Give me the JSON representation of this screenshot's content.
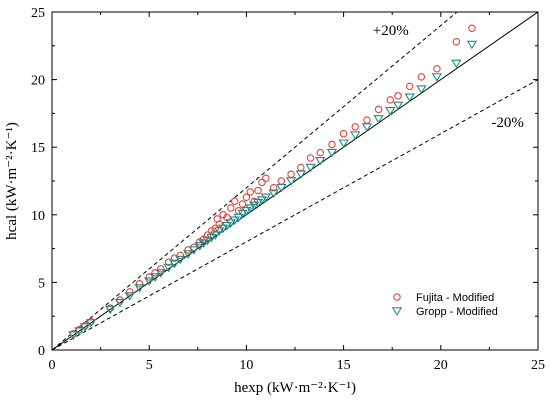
{
  "chart_data": {
    "type": "scatter",
    "xlabel": "hexp (kW·m⁻²·K⁻¹)",
    "ylabel": "hcal (kW·m⁻²·K⁻¹)",
    "xlim": [
      0,
      25
    ],
    "ylim": [
      0,
      25
    ],
    "xticks": [
      "0",
      "5",
      "10",
      "15",
      "20",
      "25"
    ],
    "yticks": [
      "0",
      "5",
      "10",
      "15",
      "20",
      "25"
    ],
    "reference_lines": [
      {
        "label": "",
        "slope": 1.0,
        "style": "solid"
      },
      {
        "label": "+20%",
        "slope": 1.2,
        "style": "dashed"
      },
      {
        "label": "-20%",
        "slope": 0.8,
        "style": "dashed"
      }
    ],
    "legend_position": "bottom-right",
    "series": [
      {
        "name": "Fujita  - Modified",
        "marker": "circle",
        "color": "#e0463c",
        "x": [
          1.1,
          1.4,
          1.7,
          2.0,
          3.0,
          3.5,
          4.0,
          4.5,
          5.0,
          5.3,
          5.6,
          6.0,
          6.3,
          6.6,
          7.0,
          7.3,
          7.6,
          7.8,
          8.0,
          8.2,
          8.4,
          8.5,
          8.6,
          8.8,
          9.0,
          9.2,
          9.4,
          9.6,
          9.8,
          10.0,
          10.2,
          10.4,
          10.6,
          10.8,
          11.0,
          11.4,
          11.8,
          12.3,
          12.8,
          13.3,
          13.8,
          14.4,
          15.0,
          15.6,
          16.2,
          16.8,
          17.4,
          17.8,
          18.4,
          19.0,
          19.8,
          20.8,
          21.6
        ],
        "y": [
          1.2,
          1.5,
          1.8,
          2.1,
          3.1,
          3.7,
          4.3,
          4.9,
          5.4,
          5.7,
          6.0,
          6.5,
          6.8,
          7.0,
          7.4,
          7.6,
          8.0,
          8.2,
          8.5,
          8.8,
          9.0,
          9.7,
          9.3,
          10.0,
          9.8,
          10.5,
          11.0,
          10.3,
          10.8,
          11.3,
          11.7,
          11.0,
          11.8,
          12.4,
          12.7,
          12.0,
          12.5,
          13.0,
          13.5,
          14.2,
          14.6,
          15.2,
          16.0,
          16.5,
          17.0,
          17.8,
          18.5,
          18.8,
          19.5,
          20.2,
          20.8,
          22.8,
          23.8
        ]
      },
      {
        "name": "Gropp - Modified",
        "marker": "triangle-down",
        "color": "#1f8c87",
        "x": [
          1.1,
          1.4,
          1.7,
          2.0,
          3.0,
          3.5,
          4.0,
          4.5,
          5.0,
          5.3,
          5.6,
          6.0,
          6.3,
          6.6,
          7.0,
          7.3,
          7.6,
          7.8,
          8.0,
          8.2,
          8.4,
          8.6,
          8.8,
          9.0,
          9.2,
          9.4,
          9.6,
          9.8,
          10.0,
          10.2,
          10.4,
          10.6,
          10.8,
          11.0,
          11.4,
          11.8,
          12.3,
          12.8,
          13.3,
          13.8,
          14.4,
          15.0,
          15.6,
          16.2,
          16.8,
          17.4,
          17.8,
          18.4,
          19.0,
          19.8,
          20.8,
          21.6
        ],
        "y": [
          1.1,
          1.4,
          1.7,
          2.0,
          3.0,
          3.5,
          4.0,
          4.6,
          5.1,
          5.4,
          5.7,
          6.1,
          6.4,
          6.7,
          7.1,
          7.4,
          7.7,
          7.9,
          8.1,
          8.3,
          8.5,
          8.8,
          9.0,
          9.2,
          9.4,
          9.6,
          9.8,
          10.1,
          10.3,
          10.5,
          10.7,
          10.9,
          11.1,
          11.3,
          11.6,
          12.0,
          12.5,
          13.0,
          13.5,
          14.0,
          14.6,
          15.3,
          15.9,
          16.5,
          17.1,
          17.7,
          18.1,
          18.7,
          19.3,
          20.2,
          21.2,
          22.6
        ]
      }
    ]
  }
}
